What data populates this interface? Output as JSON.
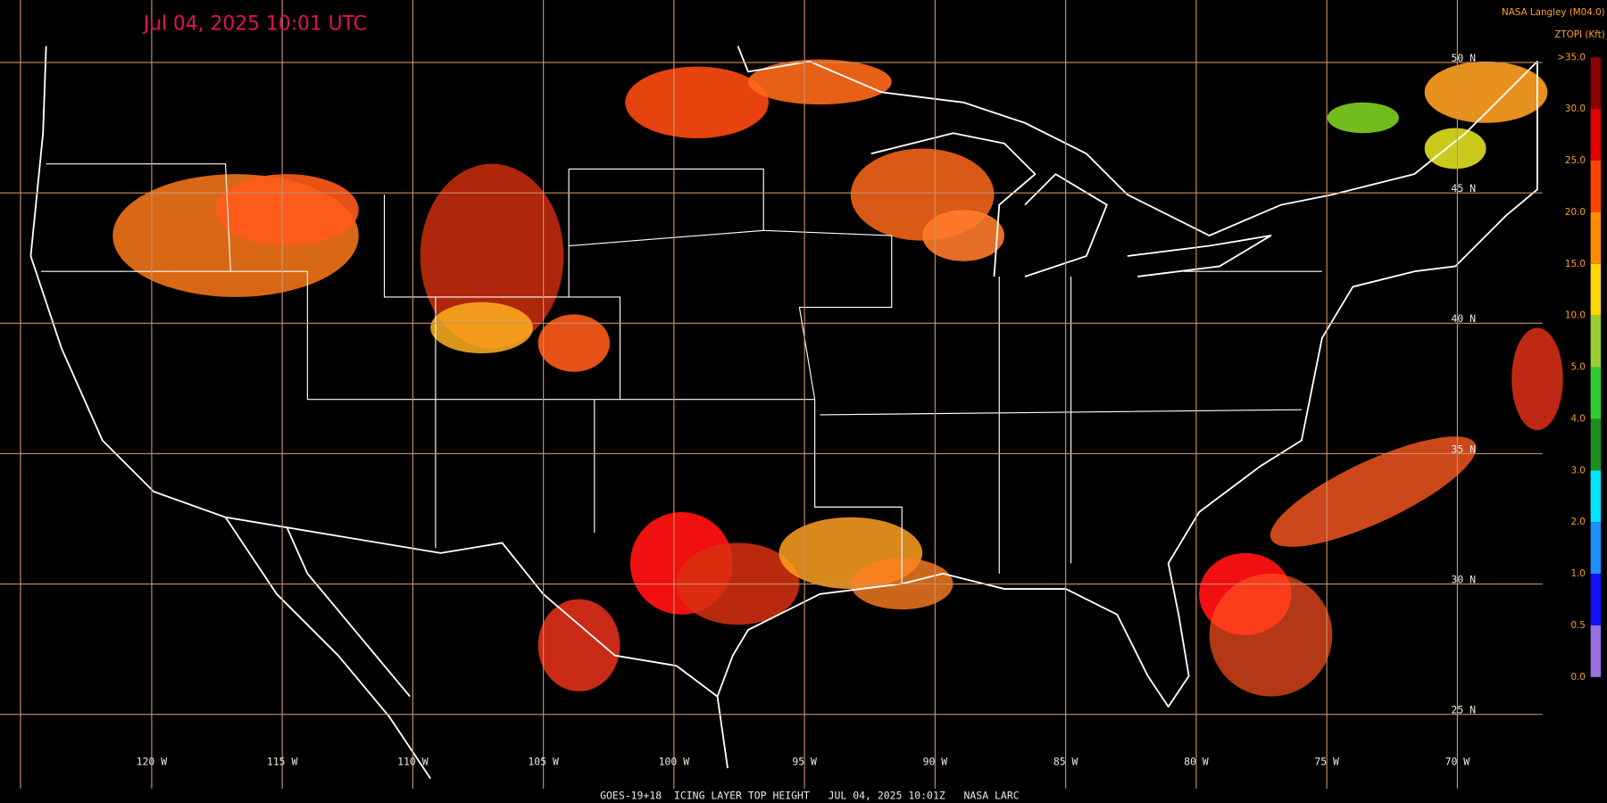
{
  "header": {
    "timestamp": "Jul 04, 2025 10:01 UTC",
    "source": "NASA Langley (M04.0)"
  },
  "legend": {
    "title": "ZTOPI (Kft)",
    "labels": [
      ">35.0",
      "30.0",
      "25.0",
      "20.0",
      "15.0",
      "10.0",
      "5.0",
      "4.0",
      "3.0",
      "2.0",
      "1.0",
      "0.5",
      "0.0"
    ],
    "colors": [
      "#8b0000",
      "#e00000",
      "#ff4500",
      "#ff8c00",
      "#ffd700",
      "#9acd32",
      "#32cd32",
      "#1f8f1f",
      "#00e5ff",
      "#1e90ff",
      "#1010ff",
      "#9a6fe0"
    ]
  },
  "graticule": {
    "latitudes": [
      "50 N",
      "45 N",
      "40 N",
      "35 N",
      "30 N",
      "25 N"
    ],
    "longitudes": [
      "120 W",
      "115 W",
      "110 W",
      "105 W",
      "100 W",
      "95 W",
      "90 W",
      "85 W",
      "80 W",
      "75 W",
      "70 W"
    ]
  },
  "footer": {
    "caption": "GOES-19+18  ICING LAYER TOP HEIGHT   JUL 04, 2025 10:01Z   NASA LARC"
  }
}
